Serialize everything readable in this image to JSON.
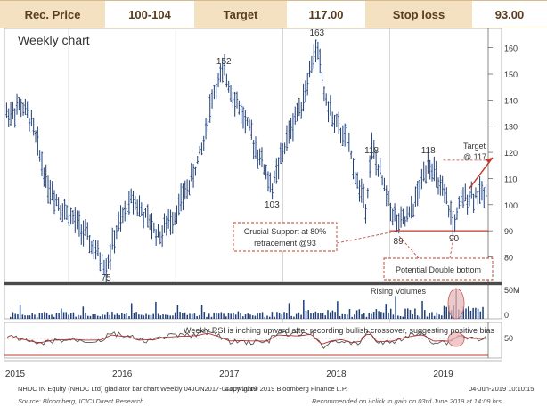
{
  "header": {
    "rec_price_label": "Rec. Price",
    "rec_price_value": "100-104",
    "target_label": "Target",
    "target_value": "117.00",
    "stop_loss_label": "Stop loss",
    "stop_loss_value": "93.00"
  },
  "footer": {
    "left": "NHDC IN Equity (NHDC Ltd) gladiator bar chart  Weekly 04JUN2017-04JUN2019",
    "center": "Copyright© 2019 Bloomberg Finance L.P.",
    "right": "04-Jun-2019 10:10:15",
    "source": "Source: Bloomberg, ICICI Direct Research",
    "recommended": "Recommended on i-click to gain on 03rd June 2019 at 14:09 hrs"
  },
  "colors": {
    "header_label_bg": "#f3e1c2",
    "header_text": "#5a3d1e",
    "bars": "#1f3f7a",
    "support_line": "#c0392b",
    "target_arrow": "#c0392b",
    "callout_border": "#c0392b",
    "volume_highlight": "#e8b8b8"
  },
  "chart_data": [
    {
      "type": "bar",
      "subtype": "ohlc-weekly",
      "title": "Weekly chart",
      "ylim": [
        72,
        166
      ],
      "yticks": [
        80,
        90,
        100,
        110,
        120,
        130,
        140,
        150,
        160
      ],
      "x_labels": [
        "2015",
        "2016",
        "2017",
        "2018",
        "2019"
      ],
      "price_points": [
        [
          "2014.95",
          135
        ],
        [
          "2015.05",
          138
        ],
        [
          "2015.15",
          132
        ],
        [
          "2015.3",
          108
        ],
        [
          "2015.45",
          98
        ],
        [
          "2015.6",
          92
        ],
        [
          "2015.75",
          82
        ],
        [
          "2015.85",
          76
        ],
        [
          "2015.95",
          90
        ],
        [
          "2016.1",
          103
        ],
        [
          "2016.2",
          96
        ],
        [
          "2016.35",
          88
        ],
        [
          "2016.5",
          97
        ],
        [
          "2016.65",
          110
        ],
        [
          "2016.75",
          122
        ],
        [
          "2016.85",
          143
        ],
        [
          "2016.95",
          151
        ],
        [
          "2017.05",
          141
        ],
        [
          "2017.15",
          132
        ],
        [
          "2017.3",
          117
        ],
        [
          "2017.4",
          106
        ],
        [
          "2017.5",
          120
        ],
        [
          "2017.6",
          132
        ],
        [
          "2017.7",
          142
        ],
        [
          "2017.78",
          155
        ],
        [
          "2017.82",
          161
        ],
        [
          "2017.9",
          140
        ],
        [
          "2018.0",
          130
        ],
        [
          "2018.1",
          125
        ],
        [
          "2018.2",
          108
        ],
        [
          "2018.28",
          100
        ],
        [
          "2018.33",
          122
        ],
        [
          "2018.42",
          110
        ],
        [
          "2018.5",
          100
        ],
        [
          "2018.58",
          92
        ],
        [
          "2018.68",
          95
        ],
        [
          "2018.78",
          106
        ],
        [
          "2018.86",
          118
        ],
        [
          "2018.95",
          108
        ],
        [
          "2019.05",
          99
        ],
        [
          "2019.1",
          92
        ],
        [
          "2019.16",
          100
        ],
        [
          "2019.22",
          104
        ]
      ],
      "annotations": [
        {
          "text": "163",
          "x": "2017.82",
          "y": 163
        },
        {
          "text": "152",
          "x": "2016.95",
          "y": 152
        },
        {
          "text": "103",
          "x": "2017.4",
          "y": 103
        },
        {
          "text": "75",
          "x": "2015.85",
          "y": 75
        },
        {
          "text": "118",
          "x": "2018.33",
          "y": 118
        },
        {
          "text": "118",
          "x": "2018.86",
          "y": 118
        },
        {
          "text": "89",
          "x": "2018.58",
          "y": 89
        },
        {
          "text": "90",
          "x": "2019.1",
          "y": 90
        }
      ],
      "support_level": 90,
      "callouts": {
        "support": "Crucial Support at 80% retracement @93",
        "double_bottom": "Potential Double bottom",
        "target": "Target @ 117"
      }
    },
    {
      "type": "bar",
      "subtype": "volume",
      "yticks_labels": [
        "50M",
        "0"
      ],
      "annotation": "Rising Volumes"
    },
    {
      "type": "line",
      "subtype": "rsi",
      "yticks": [
        50
      ],
      "annotation": "Weekly RSI is inching upward after recording bullish crossover, suggesting positive bias"
    }
  ]
}
